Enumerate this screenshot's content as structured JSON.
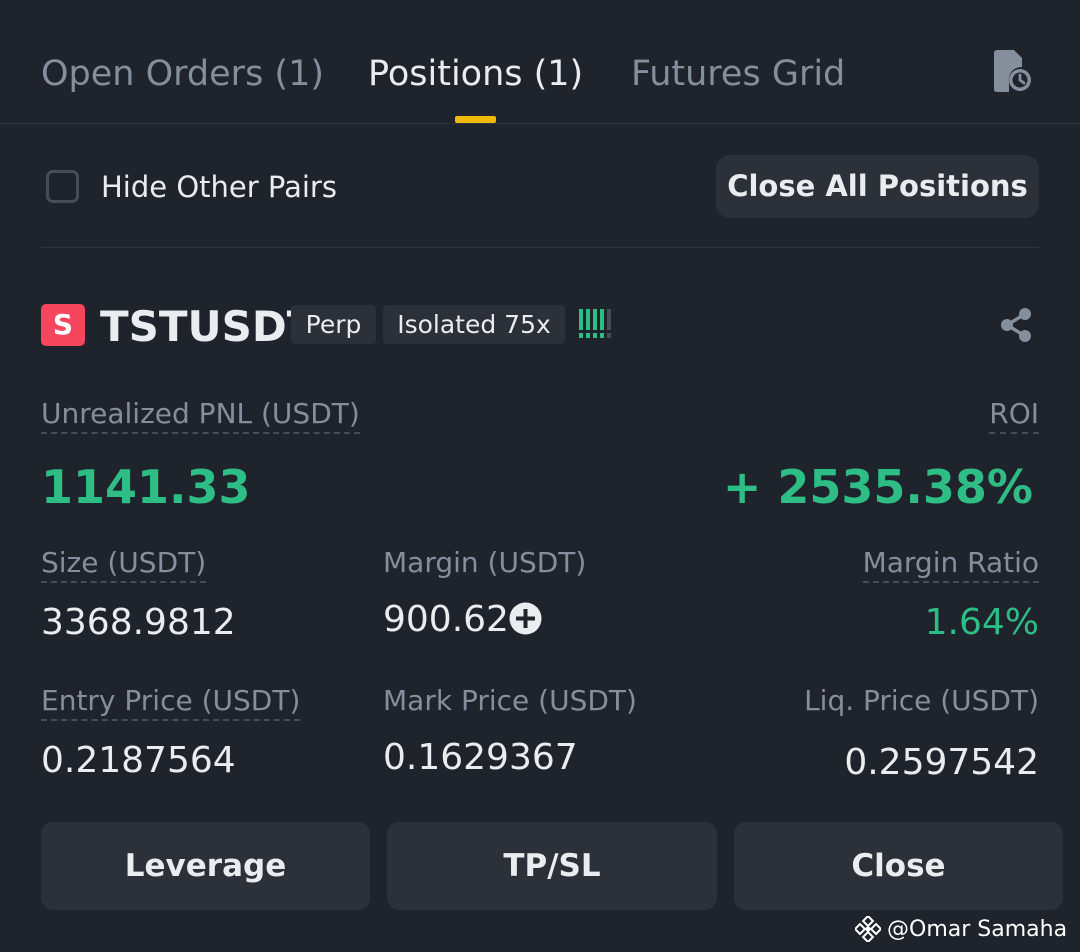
{
  "tabs": {
    "open_orders": "Open Orders (1)",
    "positions": "Positions (1)",
    "futures_grid": "Futures Grid",
    "active": "positions",
    "history_icon": "order-history-icon"
  },
  "filter": {
    "hide_other_pairs_label": "Hide Other Pairs",
    "hide_other_pairs_checked": false,
    "close_all_label": "Close All Positions"
  },
  "position": {
    "side_badge": "S",
    "symbol": "TSTUSDT",
    "contract_type": "Perp",
    "margin_mode": "Isolated 75x",
    "adl_level": 4,
    "unrealized_pnl_label": "Unrealized PNL (USDT)",
    "unrealized_pnl": "1141.33",
    "roi_label": "ROI",
    "roi": "+ 2535.38%",
    "size_label": "Size (USDT)",
    "size": "3368.9812",
    "margin_label": "Margin (USDT)",
    "margin": "900.62",
    "margin_ratio_label": "Margin Ratio",
    "margin_ratio": "1.64%",
    "entry_price_label": "Entry Price (USDT)",
    "entry_price": "0.2187564",
    "mark_price_label": "Mark Price (USDT)",
    "mark_price": "0.1629367",
    "liq_price_label": "Liq. Price (USDT)",
    "liq_price": "0.2597542"
  },
  "actions": {
    "leverage": "Leverage",
    "tpsl": "TP/SL",
    "close": "Close"
  },
  "watermark": {
    "text": "@Omar Samaha",
    "icon": "binance-logo-icon"
  },
  "colors": {
    "background": "#1f232b",
    "accent": "#f0b90b",
    "positive": "#2ebd85",
    "short_badge": "#f6465d",
    "muted_text": "#848e9c",
    "button_bg": "#2b3039"
  }
}
